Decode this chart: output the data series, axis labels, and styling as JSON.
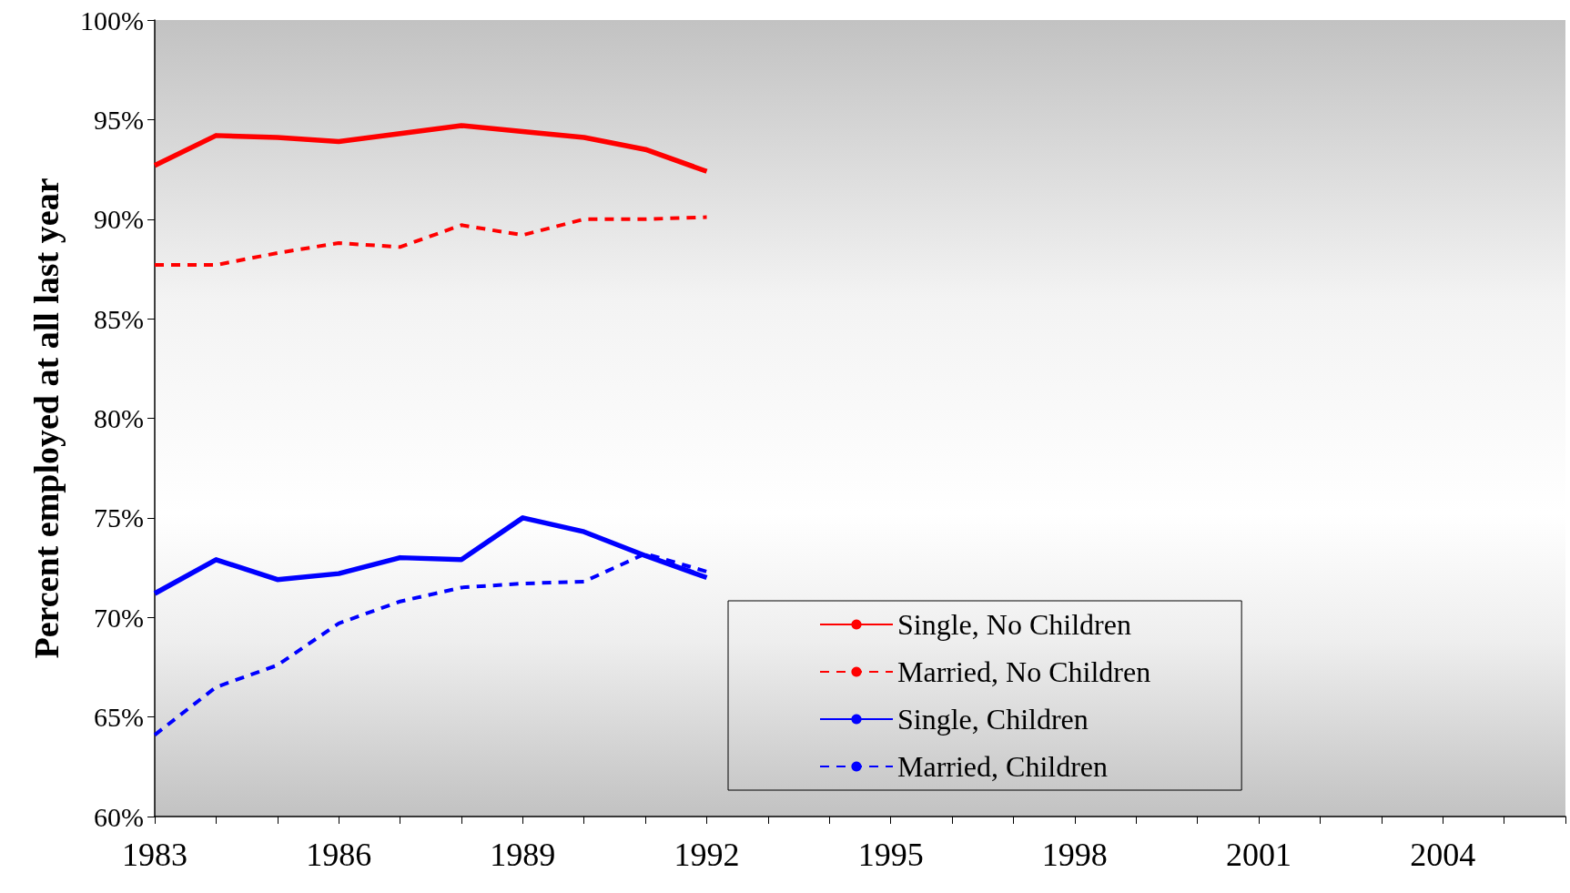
{
  "chart_data": {
    "type": "line",
    "ylabel": "Percent employed at all last year",
    "x": [
      1983,
      1984,
      1985,
      1986,
      1987,
      1988,
      1989,
      1990,
      1991,
      1992
    ],
    "series": [
      {
        "name": "Single, No Children",
        "color": "#ff0000",
        "line_style": "solid",
        "values": [
          92.7,
          94.2,
          94.1,
          93.9,
          94.3,
          94.7,
          94.4,
          94.1,
          93.5,
          92.4
        ]
      },
      {
        "name": "Married, No Children",
        "color": "#ff0000",
        "line_style": "dashed",
        "values": [
          87.7,
          87.7,
          88.3,
          88.8,
          88.6,
          89.7,
          89.2,
          90.0,
          90.0,
          90.1
        ]
      },
      {
        "name": "Single, Children",
        "color": "#0000ff",
        "line_style": "solid",
        "values": [
          71.2,
          72.9,
          71.9,
          72.2,
          73.0,
          72.9,
          75.0,
          74.3,
          73.1,
          72.0
        ]
      },
      {
        "name": "Married, Children",
        "color": "#0000ff",
        "line_style": "dashed",
        "values": [
          64.1,
          66.5,
          67.6,
          69.7,
          70.8,
          71.5,
          71.7,
          71.8,
          73.2,
          72.3
        ]
      }
    ],
    "xlim": [
      1983,
      2006
    ],
    "xticks": [
      1983,
      {
        "value": 1984,
        "label": null
      },
      {
        "value": 1985,
        "label": null
      },
      1986,
      {
        "value": 1987,
        "label": null
      },
      {
        "value": 1988,
        "label": null
      },
      1989,
      {
        "value": 1990,
        "label": null
      },
      {
        "value": 1991,
        "label": null
      },
      1992,
      {
        "value": 1993,
        "label": null
      },
      {
        "value": 1994,
        "label": null
      },
      1995,
      {
        "value": 1996,
        "label": null
      },
      {
        "value": 1997,
        "label": null
      },
      1998,
      {
        "value": 1999,
        "label": null
      },
      {
        "value": 2000,
        "label": null
      },
      2001,
      {
        "value": 2002,
        "label": null
      },
      {
        "value": 2003,
        "label": null
      },
      2004,
      {
        "value": 2005,
        "label": null
      },
      {
        "value": 2006,
        "label": null
      }
    ],
    "ylim": [
      60,
      100
    ],
    "yticks": [
      {
        "value": 60,
        "label": "60%"
      },
      {
        "value": 65,
        "label": "65%"
      },
      {
        "value": 70,
        "label": "70%"
      },
      {
        "value": 75,
        "label": "75%"
      },
      {
        "value": 80,
        "label": "80%"
      },
      {
        "value": 85,
        "label": "85%"
      },
      {
        "value": 90,
        "label": "90%"
      },
      {
        "value": 95,
        "label": "95%"
      },
      {
        "value": 100,
        "label": "100%"
      }
    ],
    "grid": false,
    "legend": "bottom",
    "marker": "none"
  }
}
